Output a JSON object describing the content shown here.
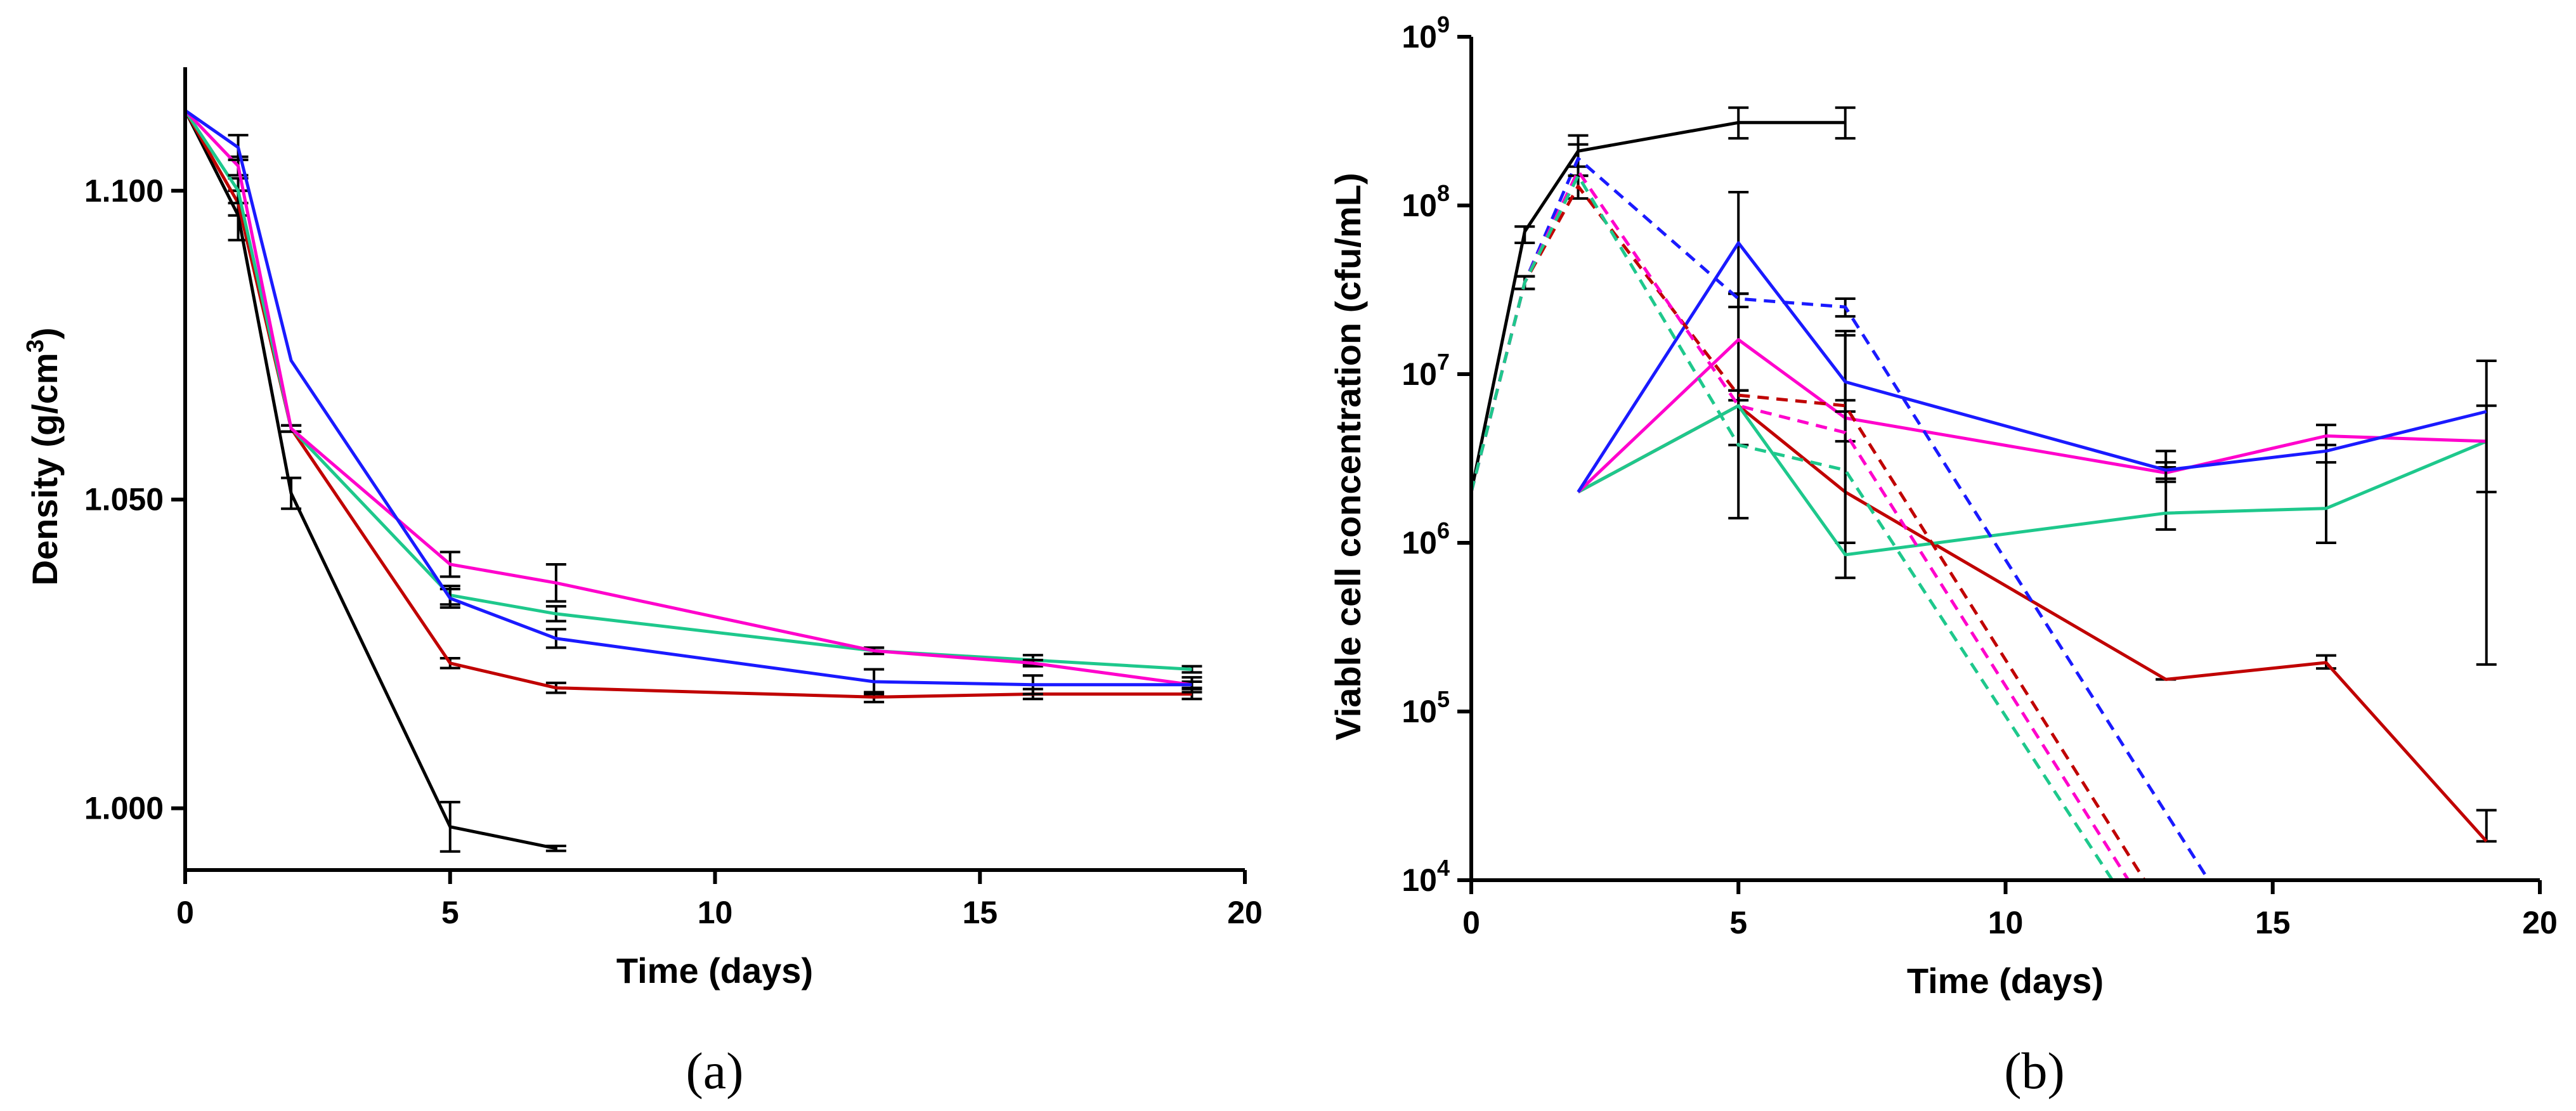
{
  "chart_data": [
    {
      "panel": "a",
      "type": "line",
      "panel_label": "(a)",
      "xlabel": "Time (days)",
      "ylabel_parts": {
        "prefix": "Density (g/cm",
        "sup": "3",
        "suffix": ")"
      },
      "xlim": [
        0,
        20
      ],
      "ylim": [
        0.99,
        1.12
      ],
      "yscale": "linear",
      "xticks": [
        0,
        5,
        10,
        15,
        20
      ],
      "xtick_labels": [
        "0",
        "5",
        "10",
        "15",
        "20"
      ],
      "yticks": [
        1.0,
        1.05,
        1.1
      ],
      "ytick_labels": [
        "1.000",
        "1.050",
        "1.100"
      ],
      "grid": false,
      "series": [
        {
          "name": "black",
          "color": "#000000",
          "dash": false,
          "x": [
            0,
            1,
            2,
            5,
            7
          ],
          "y": [
            1.113,
            1.096,
            1.051,
            0.997,
            0.9935
          ],
          "err": [
            0,
            0.004,
            0.0025,
            0.004,
            0.0004
          ]
        },
        {
          "name": "red",
          "color": "#c00000",
          "dash": false,
          "x": [
            0,
            1,
            2,
            5,
            7,
            13,
            16,
            19
          ],
          "y": [
            1.113,
            1.098,
            1.0615,
            1.0235,
            1.0195,
            1.018,
            1.0185,
            1.0185
          ],
          "err": [
            0,
            0.002,
            0.0005,
            0.0008,
            0.0008,
            0.0008,
            0.0008,
            0.0008
          ]
        },
        {
          "name": "green",
          "color": "#1ec88c",
          "dash": false,
          "x": [
            0,
            1,
            2,
            5,
            7,
            13,
            16,
            19
          ],
          "y": [
            1.113,
            1.1,
            1.0615,
            1.0345,
            1.0315,
            1.0255,
            1.024,
            1.0225
          ],
          "err": [
            0,
            0.002,
            0.0005,
            0.0015,
            0.0012,
            0.0005,
            0.0008,
            0.0005
          ]
        },
        {
          "name": "magenta",
          "color": "#ff00cc",
          "dash": false,
          "x": [
            0,
            1,
            2,
            5,
            7,
            13,
            16,
            19
          ],
          "y": [
            1.113,
            1.104,
            1.0615,
            1.0395,
            1.0365,
            1.0255,
            1.0235,
            1.02
          ],
          "err": [
            0,
            0.0015,
            0.0005,
            0.002,
            0.003,
            0.0005,
            0.0005,
            0.0005
          ]
        },
        {
          "name": "blue",
          "color": "#1a1aff",
          "dash": false,
          "x": [
            0,
            1,
            2,
            5,
            7,
            13,
            16,
            19
          ],
          "y": [
            1.113,
            1.107,
            1.0725,
            1.034,
            1.0275,
            1.0205,
            1.02,
            1.02
          ],
          "err": [
            0,
            0.002,
            0,
            0.0015,
            0.0015,
            0.002,
            0.0015,
            0.0012
          ]
        }
      ]
    },
    {
      "panel": "b",
      "type": "line",
      "panel_label": "(b)",
      "xlabel": "Time (days)",
      "ylabel": "Viable cell concentration (cfu/mL)",
      "xlim": [
        0,
        20
      ],
      "ylim": [
        10000,
        1000000000
      ],
      "yscale": "log",
      "xticks": [
        0,
        5,
        10,
        15,
        20
      ],
      "xtick_labels": [
        "0",
        "5",
        "10",
        "15",
        "20"
      ],
      "yticks": [
        10000,
        100000,
        1000000,
        10000000,
        100000000,
        1000000000
      ],
      "ytick_labels": [
        {
          "base": "10",
          "exp": "4"
        },
        {
          "base": "10",
          "exp": "5"
        },
        {
          "base": "10",
          "exp": "6"
        },
        {
          "base": "10",
          "exp": "7"
        },
        {
          "base": "10",
          "exp": "8"
        },
        {
          "base": "10",
          "exp": "9"
        }
      ],
      "grid": false,
      "series": [
        {
          "name": "black",
          "color": "#000000",
          "dash": false,
          "x": [
            0,
            1,
            2,
            5,
            7
          ],
          "y": [
            2000000,
            70000000,
            210000000,
            310000000,
            310000000
          ],
          "err_lo": [
            null,
            60000000,
            170000000,
            250000000,
            250000000
          ],
          "err_hi": [
            null,
            75000000,
            260000000,
            380000000,
            380000000
          ]
        },
        {
          "name": "red",
          "color": "#c00000",
          "dash": false,
          "x": [
            2,
            5,
            7,
            13,
            16,
            19
          ],
          "y": [
            2000000,
            6500000,
            2000000,
            155000,
            195000,
            17000
          ],
          "err_lo": [
            null,
            3800000,
            1000000,
            155000,
            180000,
            null
          ],
          "err_hi": [
            null,
            8000000,
            6000000,
            155000,
            215000,
            26000
          ]
        },
        {
          "name": "green",
          "color": "#1ec88c",
          "dash": false,
          "x": [
            2,
            5,
            7,
            13,
            16,
            19
          ],
          "y": [
            2000000,
            6500000,
            850000,
            1500000,
            1600000,
            4000000
          ],
          "err_lo": [
            null,
            1400000,
            620000,
            1200000,
            1000000,
            190000
          ],
          "err_hi": [
            null,
            30000000,
            18000000,
            3500000,
            5000000,
            12000000
          ]
        },
        {
          "name": "magenta",
          "color": "#ff00cc",
          "dash": false,
          "x": [
            2,
            5,
            7,
            13,
            16,
            19
          ],
          "y": [
            2000000,
            16000000,
            5500000,
            2600000,
            4300000,
            4000000
          ],
          "err_lo": [
            null,
            null,
            null,
            2400000,
            null,
            null
          ],
          "err_hi": [
            null,
            null,
            null,
            2800000,
            null,
            null
          ]
        },
        {
          "name": "blue",
          "color": "#1a1aff",
          "dash": false,
          "x": [
            2,
            5,
            7,
            13,
            16,
            19
          ],
          "y": [
            2000000,
            60000000,
            9000000,
            2700000,
            3500000,
            6000000
          ],
          "err_lo": [
            null,
            30000000,
            4000000,
            2300000,
            3000000,
            2000000
          ],
          "err_hi": [
            null,
            120000000,
            17000000,
            3000000,
            3800000,
            6500000
          ]
        },
        {
          "name": "blue-dashed",
          "color": "#1a1aff",
          "dash": true,
          "x": [
            0,
            1,
            2,
            5,
            7,
            13.8
          ],
          "y": [
            2000000,
            35000000,
            190000000,
            28000000,
            25000000,
            10000
          ],
          "err_lo": [
            null,
            32000000,
            150000000,
            25000000,
            22000000,
            null
          ],
          "err_hi": [
            null,
            38000000,
            230000000,
            30000000,
            28000000,
            null
          ]
        },
        {
          "name": "red-dashed",
          "color": "#c00000",
          "dash": true,
          "x": [
            0,
            1,
            2,
            5,
            7,
            12.6
          ],
          "y": [
            2000000,
            35000000,
            130000000,
            7500000,
            6500000,
            10000
          ],
          "err_lo": [
            null,
            32000000,
            110000000,
            7000000,
            6000000,
            null
          ],
          "err_hi": [
            null,
            38000000,
            150000000,
            8000000,
            7000000,
            null
          ]
        },
        {
          "name": "magenta-dashed",
          "color": "#ff00cc",
          "dash": true,
          "x": [
            0,
            1,
            2,
            5,
            7,
            12.3
          ],
          "y": [
            2000000,
            35000000,
            160000000,
            6500000,
            4500000,
            10000
          ],
          "err_lo": [
            null,
            null,
            null,
            null,
            null,
            null
          ],
          "err_hi": [
            null,
            null,
            null,
            null,
            null,
            null
          ]
        },
        {
          "name": "green-dashed",
          "color": "#1ec88c",
          "dash": true,
          "x": [
            0,
            1,
            2,
            5,
            7,
            12.0
          ],
          "y": [
            2000000,
            35000000,
            150000000,
            3800000,
            2700000,
            10000
          ],
          "err_lo": [
            null,
            null,
            null,
            null,
            null,
            null
          ],
          "err_hi": [
            null,
            null,
            null,
            null,
            null,
            null
          ]
        }
      ]
    }
  ]
}
